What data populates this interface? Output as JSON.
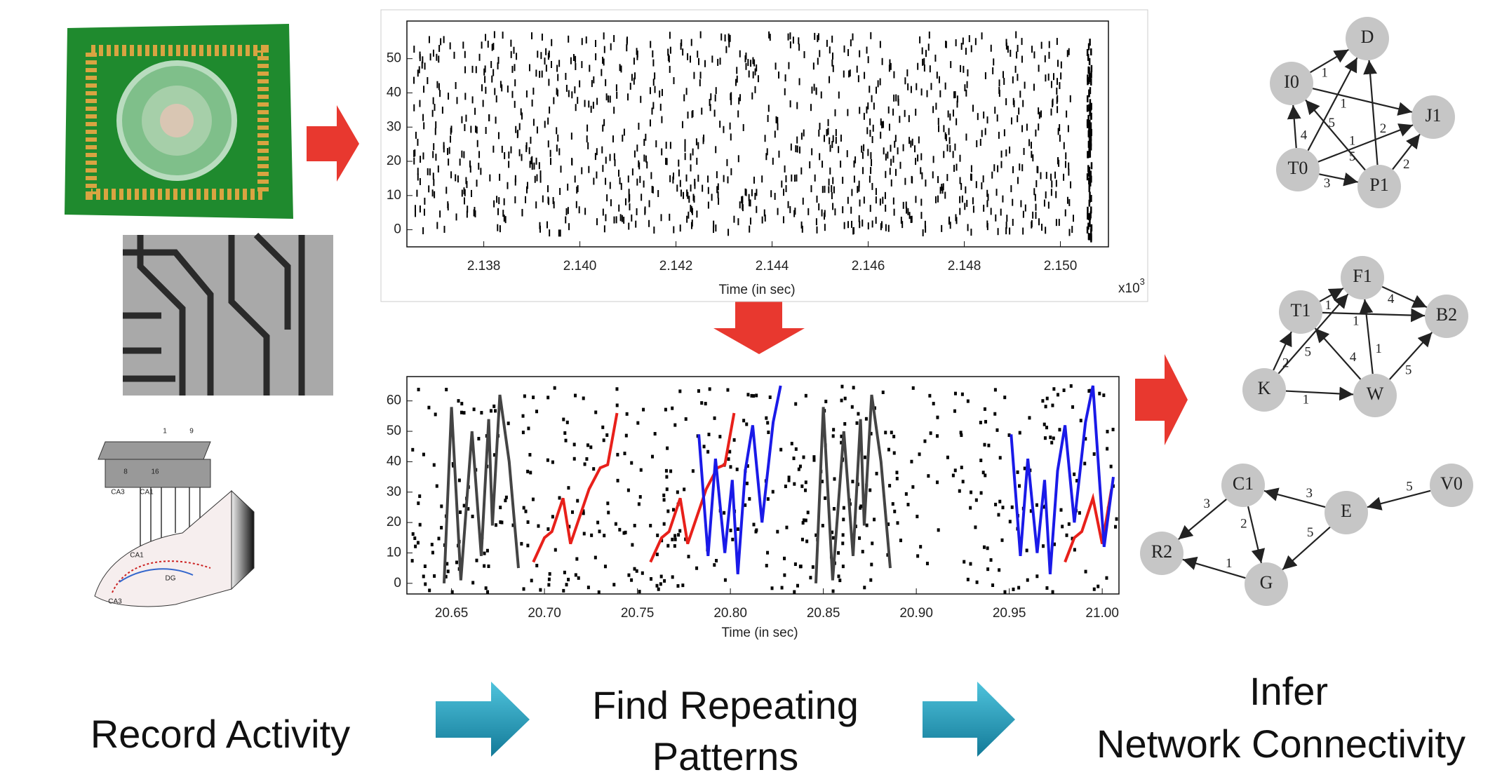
{
  "captions": {
    "record": "Record Activity",
    "find": [
      "Find Repeating",
      "Patterns"
    ],
    "infer": [
      "Infer",
      "Network Connectivity"
    ]
  },
  "raster_plot": {
    "xlabel": "Time (in sec)",
    "exponent_base": "x10",
    "exponent": "3",
    "xlim": [
      2.1364,
      2.151
    ],
    "xticks": [
      2.138,
      {
        "value": 2.14,
        "label": "2.140"
      },
      2.142,
      2.144,
      2.146,
      2.148,
      {
        "value": 2.15,
        "label": "2.150"
      }
    ],
    "ylim": [
      -5,
      61
    ],
    "yticks": [
      0,
      10,
      20,
      30,
      40,
      50
    ]
  },
  "pattern_plot": {
    "xlabel": "Time (in sec)",
    "xlim": [
      20.626,
      21.009
    ],
    "xticks": [
      20.65,
      {
        "value": 20.7,
        "label": "20.70"
      },
      20.75,
      {
        "value": 20.8,
        "label": "20.80"
      },
      20.85,
      {
        "value": 20.9,
        "label": "20.90"
      },
      20.95,
      {
        "value": 21,
        "label": "21.00"
      }
    ],
    "ylim": [
      -3.5,
      68
    ],
    "yticks": [
      0,
      10,
      20,
      30,
      40,
      50,
      60
    ],
    "series": [
      {
        "color": "#444444",
        "x": [
          20.646,
          20.65,
          20.655,
          20.661,
          20.666,
          20.67,
          20.672,
          20.676,
          20.681,
          20.686
        ],
        "y": [
          0,
          58,
          1,
          50,
          9,
          54,
          19,
          62,
          40,
          5
        ]
      },
      {
        "color": "#444444",
        "x": [
          20.846,
          20.85,
          20.855,
          20.861,
          20.866,
          20.87,
          20.872,
          20.876,
          20.881,
          20.886
        ],
        "y": [
          0,
          58,
          1,
          50,
          9,
          54,
          19,
          62,
          40,
          5
        ]
      },
      {
        "color": "#e8201a",
        "x": [
          20.694,
          20.7,
          20.704,
          20.71,
          20.714,
          20.724,
          20.73,
          20.734,
          20.739
        ],
        "y": [
          7,
          15,
          17,
          28,
          13,
          31,
          38,
          39,
          56
        ]
      },
      {
        "color": "#e8201a",
        "x": [
          20.757,
          20.763,
          20.767,
          20.773,
          20.777,
          20.787,
          20.793,
          20.797,
          20.802
        ],
        "y": [
          7,
          15,
          17,
          28,
          13,
          31,
          38,
          39,
          56
        ]
      },
      {
        "color": "#e8201a",
        "x": [
          20.98,
          20.985,
          20.989,
          20.995,
          21,
          21.005
        ],
        "y": [
          7,
          15,
          17,
          28,
          13,
          31
        ]
      },
      {
        "color": "#1a1ae8",
        "x": [
          20.783,
          20.788,
          20.792,
          20.797,
          20.801,
          20.804,
          20.808,
          20.812,
          20.817,
          20.823,
          20.827
        ],
        "y": [
          49,
          9,
          41,
          10,
          34,
          3,
          37,
          52,
          20,
          53,
          65
        ]
      },
      {
        "color": "#1a1ae8",
        "x": [
          20.951,
          20.956,
          20.96,
          20.965,
          20.969,
          20.972,
          20.976,
          20.98,
          20.985,
          20.991,
          20.995,
          21.001,
          21.006
        ],
        "y": [
          49,
          9,
          41,
          10,
          34,
          3,
          37,
          52,
          20,
          53,
          65,
          12,
          35
        ]
      }
    ]
  },
  "graphs": [
    {
      "nodes": [
        "D",
        "I0",
        "J1",
        "T0",
        "P1"
      ],
      "edges": [
        {
          "from": "I0",
          "to": "D",
          "label": "1"
        },
        {
          "from": "T0",
          "to": "I0",
          "label": "4"
        },
        {
          "from": "T0",
          "to": "D",
          "label": "5"
        },
        {
          "from": "I0",
          "to": "J1",
          "label": "1"
        },
        {
          "from": "P1",
          "to": "D",
          "label": "2"
        },
        {
          "from": "P1",
          "to": "I0",
          "label": "1"
        },
        {
          "from": "T0",
          "to": "J1",
          "label": "5"
        },
        {
          "from": "P1",
          "to": "J1",
          "label": "2"
        },
        {
          "from": "T0",
          "to": "P1",
          "label": "3"
        }
      ]
    },
    {
      "nodes": [
        "F1",
        "T1",
        "B2",
        "K",
        "W"
      ],
      "edges": [
        {
          "from": "T1",
          "to": "F1",
          "label": "1"
        },
        {
          "from": "F1",
          "to": "B2",
          "label": "4"
        },
        {
          "from": "T1",
          "to": "B2",
          "label": "1"
        },
        {
          "from": "K",
          "to": "T1",
          "label": "2"
        },
        {
          "from": "K",
          "to": "F1",
          "label": "5"
        },
        {
          "from": "W",
          "to": "T1",
          "label": "4"
        },
        {
          "from": "W",
          "to": "F1",
          "label": "1"
        },
        {
          "from": "W",
          "to": "B2",
          "label": "5"
        },
        {
          "from": "K",
          "to": "W",
          "label": "1"
        }
      ]
    },
    {
      "nodes": [
        "C1",
        "V0",
        "E",
        "R2",
        "G"
      ],
      "edges": [
        {
          "from": "C1",
          "to": "R2",
          "label": "3"
        },
        {
          "from": "C1",
          "to": "G",
          "label": "2"
        },
        {
          "from": "E",
          "to": "C1",
          "label": "3"
        },
        {
          "from": "V0",
          "to": "E",
          "label": "5"
        },
        {
          "from": "E",
          "to": "G",
          "label": "5"
        },
        {
          "from": "G",
          "to": "R2",
          "label": "1"
        }
      ]
    }
  ],
  "electrode_labels": [
    "1",
    "9",
    "8",
    "16",
    "CA3",
    "CA1",
    "CA1",
    "DG",
    "CA3"
  ]
}
